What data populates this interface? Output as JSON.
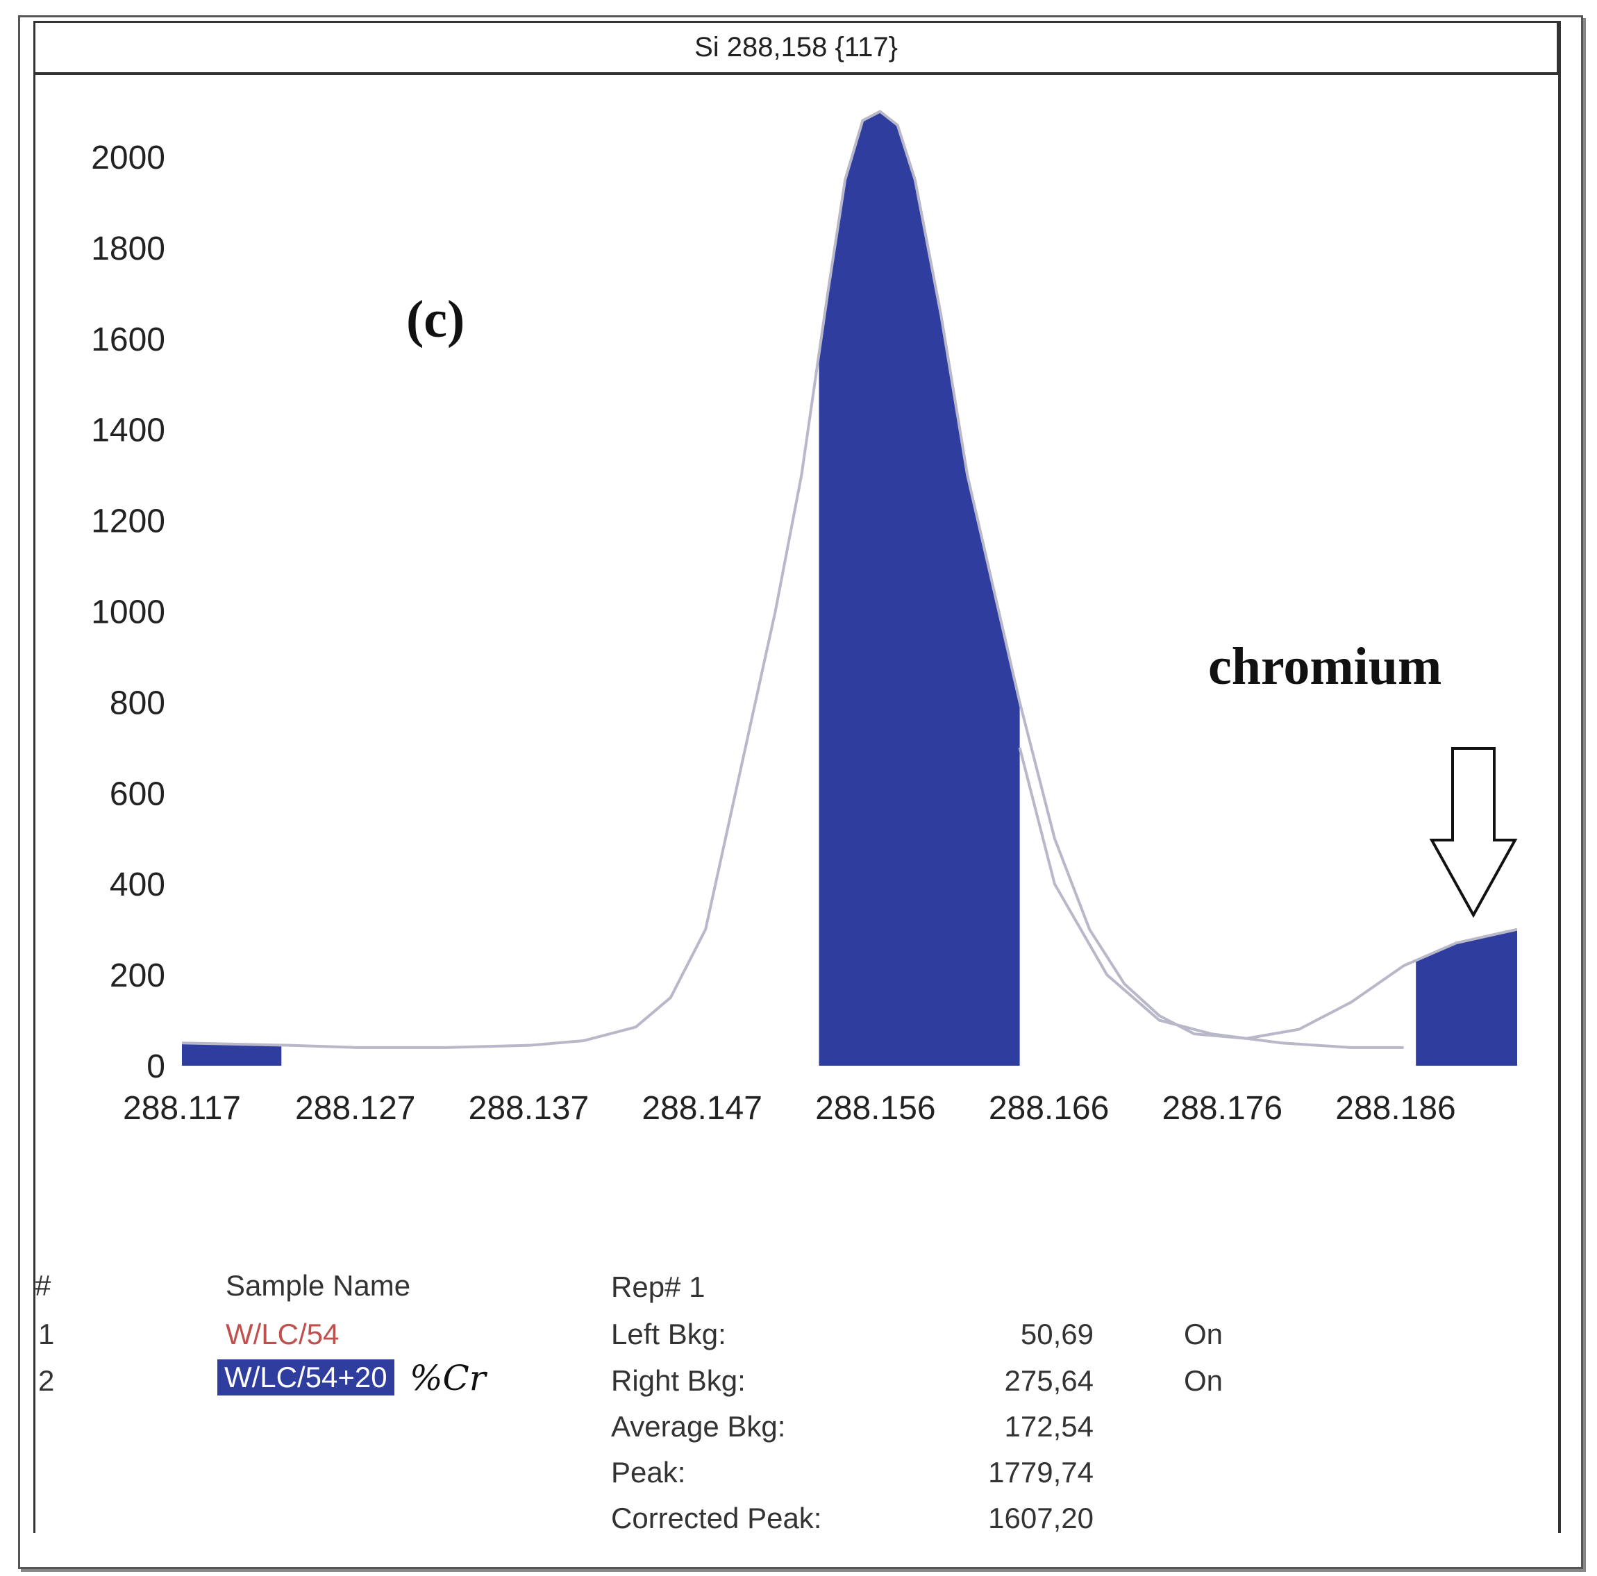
{
  "chart_data": {
    "type": "area",
    "title": "Si 288,158 {117}",
    "x_ticks": [
      "288.117",
      "288.127",
      "288.137",
      "288.147",
      "288.156",
      "288.166",
      "288.176",
      "288.186"
    ],
    "y_ticks": [
      "0",
      "200",
      "400",
      "600",
      "800",
      "1000",
      "1200",
      "1400",
      "1600",
      "1800",
      "2000"
    ],
    "xlim": [
      288.117,
      288.1935
    ],
    "ylim": [
      0,
      2000
    ],
    "grid": false,
    "curve": {
      "x": [
        288.117,
        288.123,
        288.127,
        288.132,
        288.137,
        288.14,
        288.143,
        288.145,
        288.147,
        288.149,
        288.151,
        288.1525,
        288.154,
        288.155,
        288.156,
        288.157,
        288.158,
        288.159,
        288.1605,
        288.162,
        288.1635,
        288.165,
        288.167,
        288.169,
        288.171,
        288.173,
        288.175,
        288.178,
        288.181,
        288.184,
        288.187,
        288.19,
        288.1935
      ],
      "y": [
        50,
        45,
        40,
        40,
        45,
        55,
        85,
        150,
        300,
        650,
        1000,
        1300,
        1700,
        1950,
        2080,
        2100,
        2070,
        1950,
        1650,
        1300,
        1050,
        800,
        500,
        300,
        180,
        110,
        70,
        60,
        80,
        140,
        220,
        270,
        300
      ]
    },
    "secondary_curve": {
      "x": [
        288.165,
        288.167,
        288.17,
        288.173,
        288.176,
        288.18,
        288.184,
        288.187
      ],
      "y": [
        700,
        400,
        200,
        100,
        70,
        50,
        40,
        40
      ]
    },
    "highlight_regions": [
      {
        "x_start": 288.117,
        "x_end": 288.1227
      },
      {
        "x_start": 288.1535,
        "x_end": 288.165
      },
      {
        "x_start": 288.1877,
        "x_end": 288.1935
      }
    ],
    "fill_color": "#2e3d9e",
    "line_color": "#b8b8c8",
    "annotations": [
      {
        "text": "(c)"
      },
      {
        "text": "chromium"
      }
    ]
  },
  "table": {
    "col_hash": "#",
    "col_sample": "Sample Name",
    "rows": [
      {
        "num": "1",
        "name": "W/LC/54"
      },
      {
        "num": "2",
        "name": "W/LC/54+20",
        "handwritten": "%Cr"
      }
    ],
    "rep_header": "Rep# 1",
    "stats": [
      {
        "label": "Left Bkg:",
        "value": "50,69",
        "status": "On"
      },
      {
        "label": "Right Bkg:",
        "value": "275,64",
        "status": "On"
      },
      {
        "label": "Average Bkg:",
        "value": "172,54",
        "status": ""
      },
      {
        "label": "Peak:",
        "value": "1779,74",
        "status": ""
      },
      {
        "label": "Corrected Peak:",
        "value": "1607,20",
        "status": ""
      }
    ]
  }
}
